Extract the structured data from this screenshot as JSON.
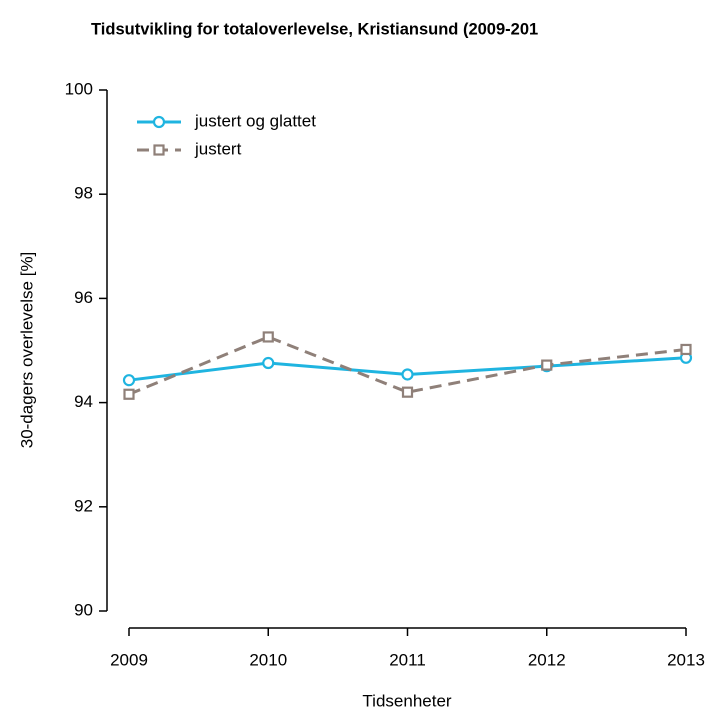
{
  "chart_data": {
    "type": "line",
    "title": "Tidsutvikling for totaloverlevelse, Kristiansund (2009-201",
    "x_label": "Tidsenheter",
    "y_label": "30-dagers overlevelse [%]",
    "x": [
      2009,
      2010,
      2011,
      2012,
      2013
    ],
    "series": [
      {
        "name": "justert og glattet",
        "color": "#1fb4e0",
        "marker": "circle",
        "dash": false,
        "values": [
          94.43,
          94.76,
          94.54,
          94.7,
          94.86
        ]
      },
      {
        "name": "justert",
        "color": "#8f8079",
        "marker": "square",
        "dash": true,
        "values": [
          94.16,
          95.26,
          94.2,
          94.72,
          95.02
        ]
      }
    ],
    "xlim": [
      2009,
      2013
    ],
    "xticks": [
      2009,
      2010,
      2011,
      2012,
      2013
    ],
    "ylim": [
      90,
      100
    ],
    "yticks": [
      90,
      92,
      94,
      96,
      98,
      100
    ],
    "grid": false,
    "legend": "top-left"
  }
}
